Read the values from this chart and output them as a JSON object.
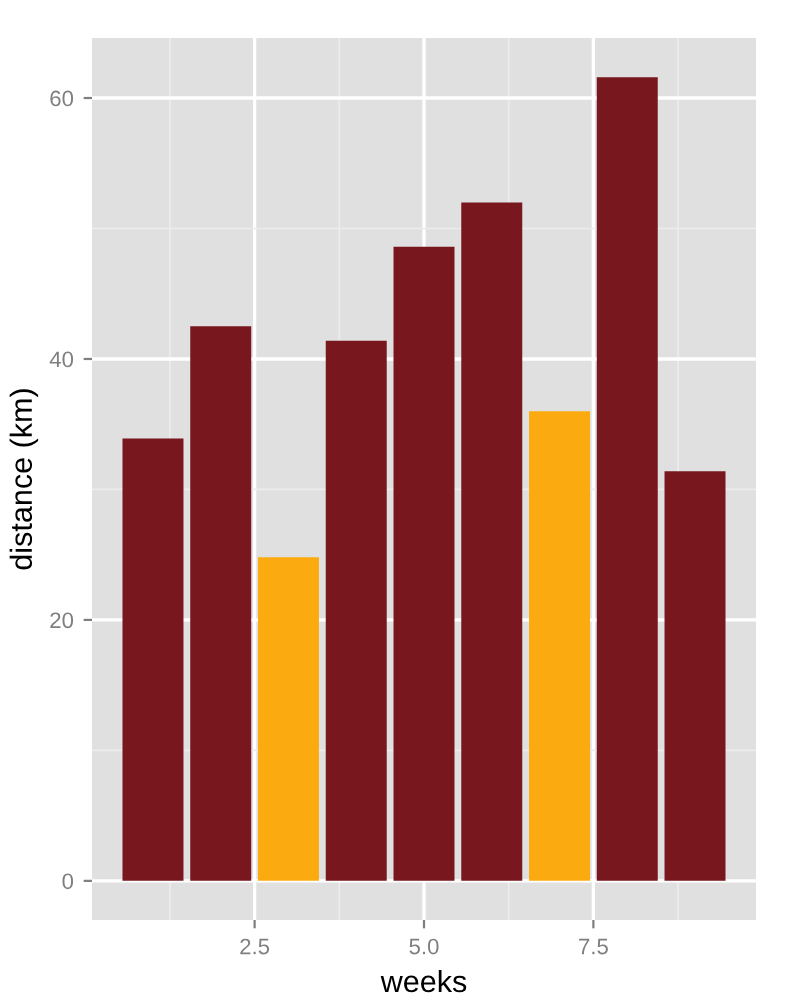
{
  "chart_data": {
    "type": "bar",
    "xlabel": "weeks",
    "ylabel": "distance (km)",
    "x": [
      1,
      2,
      3,
      4,
      5,
      6,
      7,
      8,
      9
    ],
    "values": [
      33.9,
      42.5,
      24.8,
      41.4,
      48.6,
      52.0,
      36.0,
      61.6,
      31.4
    ],
    "colors": [
      "#78171e",
      "#78171e",
      "#fbab10",
      "#78171e",
      "#78171e",
      "#78171e",
      "#fbab10",
      "#78171e",
      "#78171e"
    ],
    "xlim": [
      0.1,
      9.9
    ],
    "xticks": [
      {
        "value": 2.5,
        "label": "2.5"
      },
      {
        "value": 5.0,
        "label": "5.0"
      },
      {
        "value": 7.5,
        "label": "7.5"
      }
    ],
    "ylim": [
      -3,
      64.6
    ],
    "yticks": [
      0,
      20,
      40,
      60
    ],
    "grid": true
  }
}
